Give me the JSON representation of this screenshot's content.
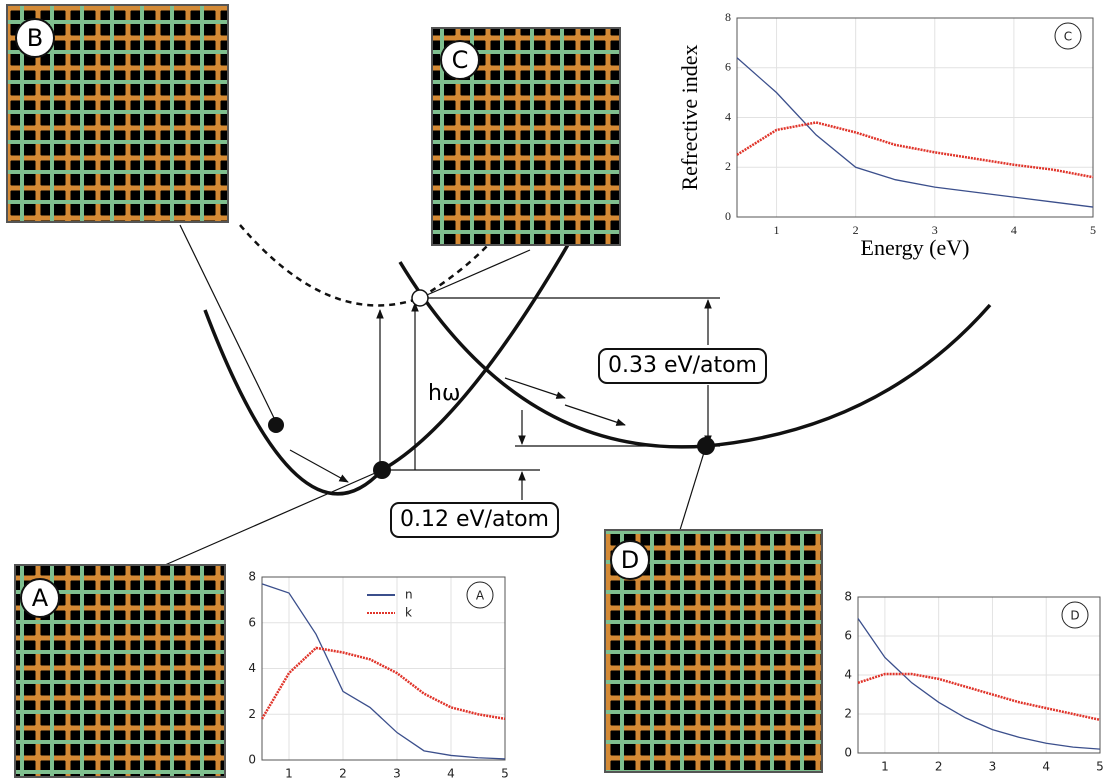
{
  "diagram": {
    "panels": [
      "A",
      "B",
      "C",
      "D"
    ],
    "energy_labels": [
      "hω",
      "0.33 eV/atom",
      "0.12 eV/atom"
    ]
  },
  "chart_data": [
    {
      "type": "line",
      "label": "C",
      "ylabel": "Refrective index",
      "xlabel": "Energy (eV)",
      "x": [
        0.5,
        1,
        1.5,
        2,
        2.5,
        3,
        3.5,
        4,
        4.5,
        5
      ],
      "series": [
        {
          "color": "#3b4f8c",
          "values": [
            6.4,
            5.0,
            3.3,
            2.0,
            1.5,
            1.2,
            1.0,
            0.8,
            0.6,
            0.4
          ]
        },
        {
          "color": "#e0342a",
          "values": [
            2.5,
            3.5,
            3.8,
            3.4,
            2.9,
            2.6,
            2.35,
            2.1,
            1.9,
            1.6
          ]
        }
      ],
      "xlim": [
        0.5,
        5
      ],
      "ylim": [
        0,
        8
      ],
      "xticks": [
        1,
        2,
        3,
        4,
        5
      ],
      "yticks": [
        0,
        2,
        4,
        6,
        8
      ],
      "grid": true
    },
    {
      "type": "line",
      "label": "A",
      "x": [
        0.5,
        1,
        1.5,
        2,
        2.5,
        3,
        3.5,
        4,
        4.5,
        5
      ],
      "series": [
        {
          "name": "n",
          "color": "#3b4f8c",
          "values": [
            7.7,
            7.3,
            5.5,
            3.0,
            2.3,
            1.2,
            0.4,
            0.2,
            0.1,
            0.05
          ]
        },
        {
          "name": "k",
          "color": "#e0342a",
          "values": [
            1.8,
            3.8,
            4.9,
            4.7,
            4.4,
            3.8,
            2.9,
            2.3,
            2.0,
            1.8
          ]
        }
      ],
      "xlim": [
        0.5,
        5
      ],
      "ylim": [
        0,
        8
      ],
      "xticks": [
        1,
        2,
        3,
        4,
        5
      ],
      "yticks": [
        0,
        2,
        4,
        6,
        8
      ],
      "grid": true,
      "legend": "top"
    },
    {
      "type": "line",
      "label": "D",
      "x": [
        0.5,
        1,
        1.5,
        2,
        2.5,
        3,
        3.5,
        4,
        4.5,
        5
      ],
      "series": [
        {
          "color": "#3b4f8c",
          "values": [
            6.9,
            4.9,
            3.6,
            2.6,
            1.8,
            1.2,
            0.8,
            0.5,
            0.3,
            0.2
          ]
        },
        {
          "color": "#e0342a",
          "values": [
            3.6,
            4.05,
            4.05,
            3.8,
            3.4,
            3.0,
            2.6,
            2.3,
            2.0,
            1.7
          ]
        }
      ],
      "xlim": [
        0.5,
        5
      ],
      "ylim": [
        0,
        8
      ],
      "xticks": [
        1,
        2,
        3,
        4,
        5
      ],
      "yticks": [
        0,
        2,
        4,
        6,
        8
      ],
      "grid": true
    }
  ]
}
